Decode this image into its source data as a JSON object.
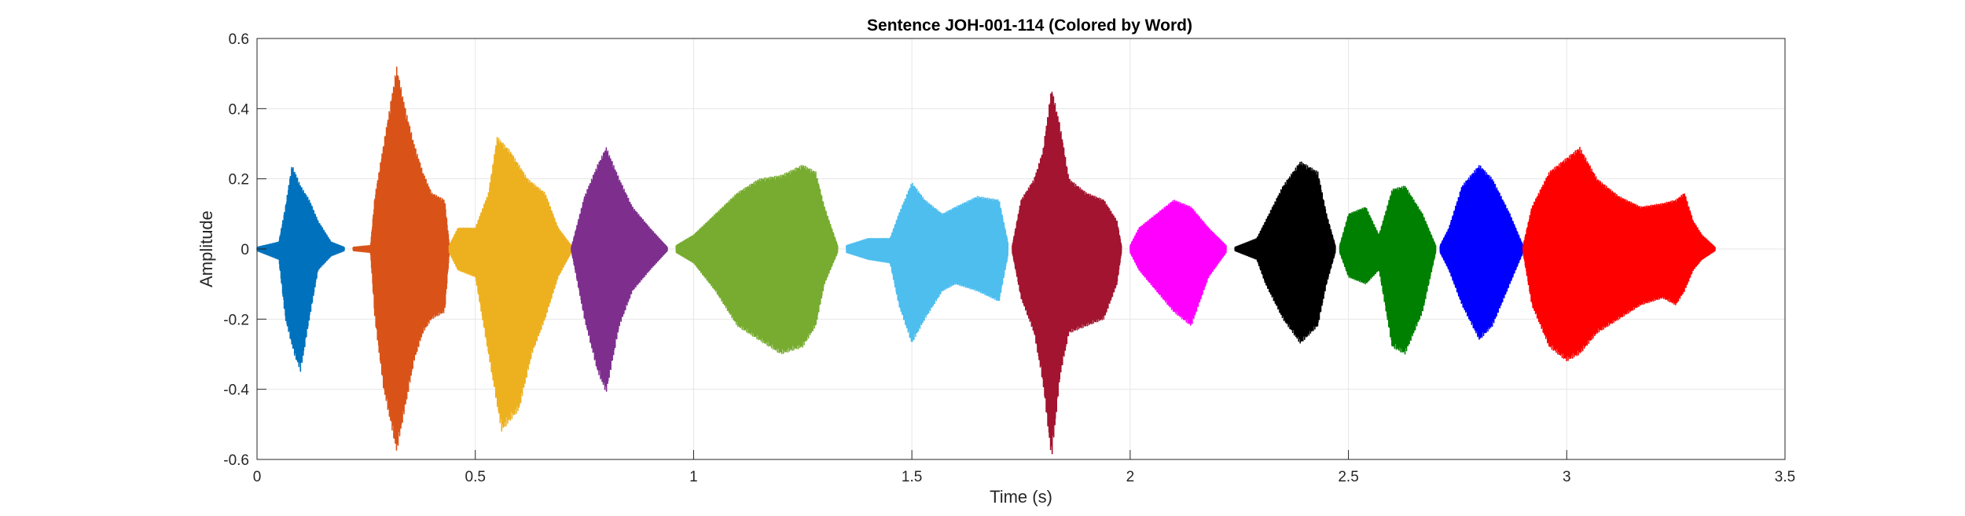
{
  "chart_data": {
    "type": "line",
    "title": "Sentence JOH-001-114 (Colored by Word)",
    "xlabel": "Time (s)",
    "ylabel": "Amplitude",
    "xlim": [
      0,
      3.5
    ],
    "ylim": [
      -0.6,
      0.6
    ],
    "xticks": [
      0,
      0.5,
      1,
      1.5,
      2,
      2.5,
      3,
      3.5
    ],
    "xtick_labels": [
      "0",
      "0.5",
      "1",
      "1.5",
      "2",
      "2.5",
      "3",
      "3.5"
    ],
    "yticks": [
      -0.6,
      -0.4,
      -0.2,
      0,
      0.2,
      0.4,
      0.6
    ],
    "ytick_labels": [
      "-0.6",
      "-0.4",
      "-0.2",
      "0",
      "0.2",
      "0.4",
      "0.6"
    ],
    "grid": true,
    "series": [
      {
        "color": "#0072BD",
        "t_start": 0.0,
        "t_end": 0.2,
        "envelope": [
          [
            0.0,
            0.005
          ],
          [
            0.05,
            0.02
          ],
          [
            0.065,
            0.12
          ],
          [
            0.08,
            0.24
          ],
          [
            0.1,
            0.18
          ],
          [
            0.12,
            0.14
          ],
          [
            0.14,
            0.08
          ],
          [
            0.17,
            0.02
          ],
          [
            0.2,
            0.005
          ]
        ],
        "env_neg": [
          [
            0.0,
            0.005
          ],
          [
            0.05,
            0.03
          ],
          [
            0.065,
            0.2
          ],
          [
            0.085,
            0.3
          ],
          [
            0.1,
            0.35
          ],
          [
            0.12,
            0.2
          ],
          [
            0.14,
            0.06
          ],
          [
            0.17,
            0.02
          ],
          [
            0.2,
            0.005
          ]
        ]
      },
      {
        "color": "#D95319",
        "t_start": 0.22,
        "t_end": 0.44,
        "envelope": [
          [
            0.22,
            0.005
          ],
          [
            0.26,
            0.01
          ],
          [
            0.27,
            0.15
          ],
          [
            0.29,
            0.3
          ],
          [
            0.32,
            0.52
          ],
          [
            0.34,
            0.4
          ],
          [
            0.36,
            0.3
          ],
          [
            0.38,
            0.22
          ],
          [
            0.4,
            0.16
          ],
          [
            0.43,
            0.14
          ],
          [
            0.44,
            0.02
          ]
        ],
        "env_neg": [
          [
            0.22,
            0.005
          ],
          [
            0.26,
            0.01
          ],
          [
            0.27,
            0.2
          ],
          [
            0.29,
            0.4
          ],
          [
            0.32,
            0.58
          ],
          [
            0.34,
            0.45
          ],
          [
            0.36,
            0.32
          ],
          [
            0.38,
            0.24
          ],
          [
            0.4,
            0.2
          ],
          [
            0.43,
            0.18
          ],
          [
            0.44,
            0.02
          ]
        ]
      },
      {
        "color": "#EDB120",
        "t_start": 0.44,
        "t_end": 0.72,
        "envelope": [
          [
            0.44,
            0.01
          ],
          [
            0.46,
            0.06
          ],
          [
            0.5,
            0.06
          ],
          [
            0.53,
            0.16
          ],
          [
            0.55,
            0.32
          ],
          [
            0.58,
            0.28
          ],
          [
            0.62,
            0.2
          ],
          [
            0.66,
            0.16
          ],
          [
            0.69,
            0.06
          ],
          [
            0.72,
            0.01
          ]
        ],
        "env_neg": [
          [
            0.44,
            0.01
          ],
          [
            0.46,
            0.06
          ],
          [
            0.5,
            0.08
          ],
          [
            0.53,
            0.3
          ],
          [
            0.56,
            0.52
          ],
          [
            0.6,
            0.46
          ],
          [
            0.63,
            0.3
          ],
          [
            0.66,
            0.2
          ],
          [
            0.69,
            0.08
          ],
          [
            0.72,
            0.01
          ]
        ]
      },
      {
        "color": "#7E2F8E",
        "t_start": 0.72,
        "t_end": 0.94,
        "envelope": [
          [
            0.72,
            0.005
          ],
          [
            0.75,
            0.15
          ],
          [
            0.78,
            0.24
          ],
          [
            0.8,
            0.29
          ],
          [
            0.83,
            0.2
          ],
          [
            0.86,
            0.12
          ],
          [
            0.9,
            0.06
          ],
          [
            0.94,
            0.005
          ]
        ],
        "env_neg": [
          [
            0.72,
            0.005
          ],
          [
            0.75,
            0.2
          ],
          [
            0.78,
            0.35
          ],
          [
            0.8,
            0.41
          ],
          [
            0.83,
            0.22
          ],
          [
            0.86,
            0.12
          ],
          [
            0.9,
            0.06
          ],
          [
            0.94,
            0.005
          ]
        ]
      },
      {
        "color": "#77AC30",
        "t_start": 0.96,
        "t_end": 1.33,
        "envelope": [
          [
            0.96,
            0.01
          ],
          [
            1.0,
            0.04
          ],
          [
            1.05,
            0.1
          ],
          [
            1.1,
            0.16
          ],
          [
            1.15,
            0.2
          ],
          [
            1.2,
            0.21
          ],
          [
            1.25,
            0.24
          ],
          [
            1.28,
            0.22
          ],
          [
            1.3,
            0.12
          ],
          [
            1.33,
            0.01
          ]
        ],
        "env_neg": [
          [
            0.96,
            0.01
          ],
          [
            1.0,
            0.04
          ],
          [
            1.05,
            0.12
          ],
          [
            1.1,
            0.22
          ],
          [
            1.15,
            0.26
          ],
          [
            1.2,
            0.3
          ],
          [
            1.25,
            0.28
          ],
          [
            1.28,
            0.22
          ],
          [
            1.3,
            0.1
          ],
          [
            1.33,
            0.01
          ]
        ]
      },
      {
        "color": "#4DBEEE",
        "t_start": 1.35,
        "t_end": 1.72,
        "envelope": [
          [
            1.35,
            0.01
          ],
          [
            1.4,
            0.03
          ],
          [
            1.45,
            0.03
          ],
          [
            1.47,
            0.1
          ],
          [
            1.5,
            0.19
          ],
          [
            1.53,
            0.14
          ],
          [
            1.57,
            0.1
          ],
          [
            1.6,
            0.12
          ],
          [
            1.65,
            0.15
          ],
          [
            1.7,
            0.14
          ],
          [
            1.72,
            0.02
          ]
        ],
        "env_neg": [
          [
            1.35,
            0.01
          ],
          [
            1.4,
            0.03
          ],
          [
            1.45,
            0.04
          ],
          [
            1.47,
            0.16
          ],
          [
            1.5,
            0.27
          ],
          [
            1.53,
            0.2
          ],
          [
            1.57,
            0.12
          ],
          [
            1.6,
            0.1
          ],
          [
            1.65,
            0.12
          ],
          [
            1.7,
            0.15
          ],
          [
            1.72,
            0.02
          ]
        ]
      },
      {
        "color": "#A2142F",
        "t_start": 1.73,
        "t_end": 1.98,
        "envelope": [
          [
            1.73,
            0.01
          ],
          [
            1.75,
            0.14
          ],
          [
            1.78,
            0.2
          ],
          [
            1.8,
            0.28
          ],
          [
            1.82,
            0.46
          ],
          [
            1.84,
            0.35
          ],
          [
            1.86,
            0.2
          ],
          [
            1.9,
            0.16
          ],
          [
            1.94,
            0.14
          ],
          [
            1.97,
            0.08
          ],
          [
            1.98,
            0.01
          ]
        ],
        "env_neg": [
          [
            1.73,
            0.01
          ],
          [
            1.75,
            0.14
          ],
          [
            1.78,
            0.24
          ],
          [
            1.8,
            0.38
          ],
          [
            1.82,
            0.6
          ],
          [
            1.84,
            0.36
          ],
          [
            1.86,
            0.24
          ],
          [
            1.9,
            0.22
          ],
          [
            1.94,
            0.2
          ],
          [
            1.97,
            0.1
          ],
          [
            1.98,
            0.01
          ]
        ]
      },
      {
        "color": "#FF00FF",
        "t_start": 2.0,
        "t_end": 2.22,
        "envelope": [
          [
            2.0,
            0.01
          ],
          [
            2.02,
            0.06
          ],
          [
            2.06,
            0.1
          ],
          [
            2.1,
            0.14
          ],
          [
            2.14,
            0.12
          ],
          [
            2.18,
            0.06
          ],
          [
            2.22,
            0.01
          ]
        ],
        "env_neg": [
          [
            2.0,
            0.01
          ],
          [
            2.02,
            0.06
          ],
          [
            2.06,
            0.12
          ],
          [
            2.1,
            0.18
          ],
          [
            2.14,
            0.22
          ],
          [
            2.18,
            0.08
          ],
          [
            2.22,
            0.01
          ]
        ]
      },
      {
        "color": "#000000",
        "t_start": 2.24,
        "t_end": 2.47,
        "envelope": [
          [
            2.24,
            0.005
          ],
          [
            2.29,
            0.03
          ],
          [
            2.31,
            0.08
          ],
          [
            2.35,
            0.18
          ],
          [
            2.39,
            0.25
          ],
          [
            2.43,
            0.22
          ],
          [
            2.45,
            0.1
          ],
          [
            2.47,
            0.01
          ]
        ],
        "env_neg": [
          [
            2.24,
            0.005
          ],
          [
            2.29,
            0.03
          ],
          [
            2.31,
            0.1
          ],
          [
            2.35,
            0.2
          ],
          [
            2.39,
            0.27
          ],
          [
            2.43,
            0.22
          ],
          [
            2.45,
            0.1
          ],
          [
            2.47,
            0.01
          ]
        ]
      },
      {
        "color": "#008000",
        "t_start": 2.48,
        "t_end": 2.7,
        "envelope": [
          [
            2.48,
            0.01
          ],
          [
            2.5,
            0.1
          ],
          [
            2.54,
            0.12
          ],
          [
            2.57,
            0.04
          ],
          [
            2.6,
            0.17
          ],
          [
            2.63,
            0.18
          ],
          [
            2.67,
            0.1
          ],
          [
            2.7,
            0.01
          ]
        ],
        "env_neg": [
          [
            2.48,
            0.01
          ],
          [
            2.5,
            0.08
          ],
          [
            2.54,
            0.1
          ],
          [
            2.57,
            0.06
          ],
          [
            2.6,
            0.28
          ],
          [
            2.63,
            0.3
          ],
          [
            2.67,
            0.18
          ],
          [
            2.7,
            0.01
          ]
        ]
      },
      {
        "color": "#0000FF",
        "t_start": 2.71,
        "t_end": 2.9,
        "envelope": [
          [
            2.71,
            0.01
          ],
          [
            2.73,
            0.06
          ],
          [
            2.76,
            0.18
          ],
          [
            2.8,
            0.24
          ],
          [
            2.83,
            0.2
          ],
          [
            2.87,
            0.1
          ],
          [
            2.9,
            0.01
          ]
        ],
        "env_neg": [
          [
            2.71,
            0.01
          ],
          [
            2.73,
            0.06
          ],
          [
            2.76,
            0.16
          ],
          [
            2.8,
            0.26
          ],
          [
            2.83,
            0.22
          ],
          [
            2.87,
            0.1
          ],
          [
            2.9,
            0.01
          ]
        ]
      },
      {
        "color": "#FF0000",
        "t_start": 2.9,
        "t_end": 3.34,
        "envelope": [
          [
            2.9,
            0.01
          ],
          [
            2.92,
            0.12
          ],
          [
            2.96,
            0.22
          ],
          [
            3.0,
            0.26
          ],
          [
            3.03,
            0.29
          ],
          [
            3.07,
            0.2
          ],
          [
            3.12,
            0.15
          ],
          [
            3.17,
            0.12
          ],
          [
            3.22,
            0.13
          ],
          [
            3.25,
            0.14
          ],
          [
            3.27,
            0.16
          ],
          [
            3.29,
            0.08
          ],
          [
            3.31,
            0.04
          ],
          [
            3.34,
            0.005
          ]
        ],
        "env_neg": [
          [
            2.9,
            0.01
          ],
          [
            2.92,
            0.16
          ],
          [
            2.96,
            0.28
          ],
          [
            3.0,
            0.32
          ],
          [
            3.03,
            0.3
          ],
          [
            3.07,
            0.24
          ],
          [
            3.12,
            0.2
          ],
          [
            3.17,
            0.16
          ],
          [
            3.22,
            0.14
          ],
          [
            3.25,
            0.16
          ],
          [
            3.27,
            0.12
          ],
          [
            3.29,
            0.06
          ],
          [
            3.31,
            0.03
          ],
          [
            3.34,
            0.005
          ]
        ]
      }
    ]
  }
}
